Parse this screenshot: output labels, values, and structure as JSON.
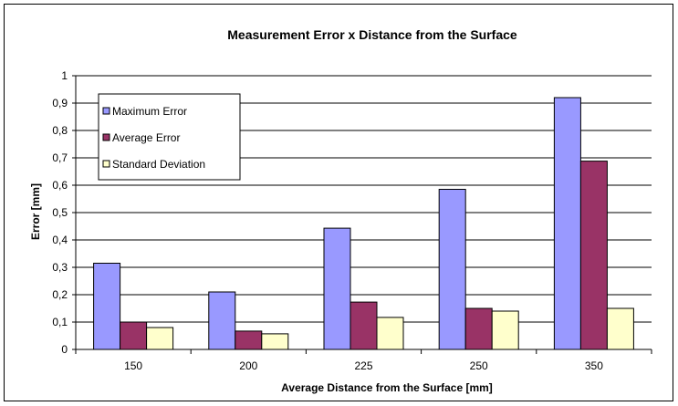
{
  "chart_data": {
    "type": "bar",
    "title": "Measurement Error x Distance from the Surface",
    "xlabel": "Average Distance from the Surface [mm]",
    "ylabel": "Error [mm]",
    "categories": [
      "150",
      "200",
      "225",
      "250",
      "350"
    ],
    "ylim": [
      0,
      1
    ],
    "yticks": [
      "0",
      "0,1",
      "0,2",
      "0,3",
      "0,4",
      "0,5",
      "0,6",
      "0,7",
      "0,8",
      "0,9",
      "1"
    ],
    "grid": true,
    "legend_position": "top-left",
    "series": [
      {
        "name": "Maximum Error",
        "color": "#9999ff",
        "values": [
          0.315,
          0.21,
          0.443,
          0.585,
          0.92
        ]
      },
      {
        "name": "Average Error",
        "color": "#993366",
        "values": [
          0.1,
          0.067,
          0.173,
          0.15,
          0.688
        ]
      },
      {
        "name": "Standard Deviation",
        "color": "#ffffcc",
        "values": [
          0.08,
          0.057,
          0.117,
          0.14,
          0.15
        ]
      }
    ]
  }
}
